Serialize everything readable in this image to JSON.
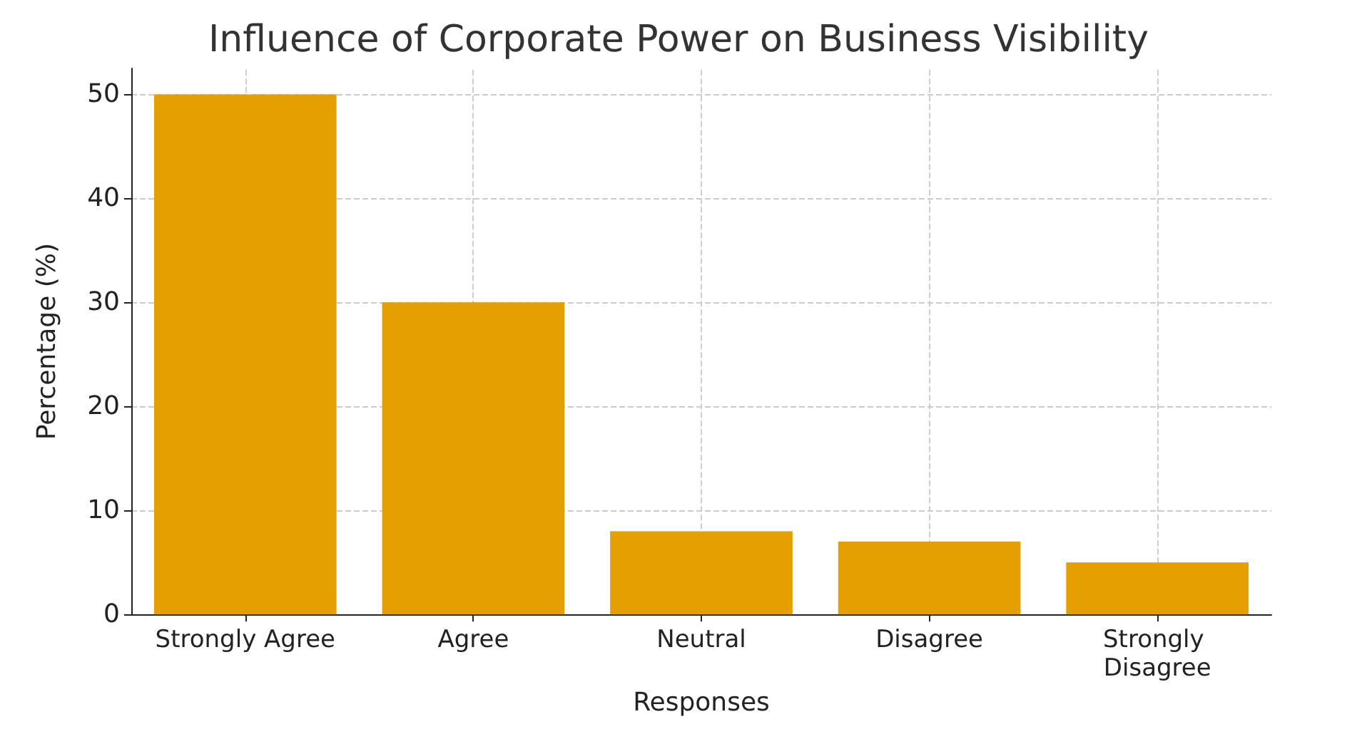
{
  "chart_data": {
    "type": "bar",
    "title": "Influence of Corporate Power on Business Visibility",
    "xlabel": "Responses",
    "ylabel": "Percentage (%)",
    "categories": [
      "Strongly Agree",
      "Agree",
      "Neutral",
      "Disagree",
      "Strongly Disagree"
    ],
    "values": [
      50,
      30,
      8,
      7,
      5
    ],
    "color": "#e69f00",
    "ylim": [
      0,
      52.5
    ],
    "yticks": [
      0,
      10,
      20,
      30,
      40,
      50
    ],
    "grid": true
  }
}
